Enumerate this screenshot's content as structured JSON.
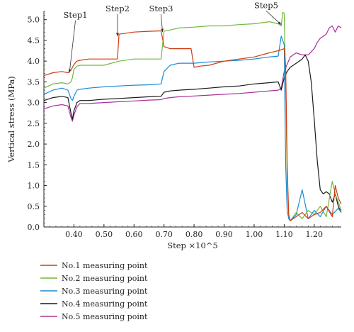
{
  "chart_data": {
    "type": "line",
    "xlabel": "Step ×10^5",
    "ylabel": "Vertical stress (MPa)",
    "xlim": [
      0.3,
      1.29
    ],
    "ylim": [
      0.0,
      5.2
    ],
    "x_ticks": [
      "0.40",
      "0.50",
      "0.60",
      "0.70",
      "0.80",
      "0.90",
      "1.00",
      "1.10",
      "1.20"
    ],
    "y_ticks": [
      "0.0",
      "0.5",
      "1.0",
      "1.5",
      "2.0",
      "2.5",
      "3.0",
      "3.5",
      "4.0",
      "4.5",
      "5.0"
    ],
    "grid": false,
    "legend_position": "bottom-left",
    "annotations": [
      {
        "text": "Step1",
        "x": 0.38,
        "y": 3.7
      },
      {
        "text": "Step2",
        "x": 0.55,
        "y": 4.65
      },
      {
        "text": "Step3",
        "x": 0.69,
        "y": 4.72
      },
      {
        "text": "Step5",
        "x": 1.085,
        "y": 4.9
      }
    ],
    "series": [
      {
        "name": "No.1 measuring point",
        "color": "#d03a10",
        "x": [
          0.3,
          0.33,
          0.36,
          0.38,
          0.39,
          0.395,
          0.4,
          0.41,
          0.42,
          0.45,
          0.5,
          0.545,
          0.55,
          0.6,
          0.65,
          0.69,
          0.7,
          0.72,
          0.75,
          0.79,
          0.8,
          0.82,
          0.85,
          0.9,
          0.95,
          1.0,
          1.05,
          1.08,
          1.1,
          1.105,
          1.11,
          1.115,
          1.12,
          1.14,
          1.16,
          1.18,
          1.2,
          1.22,
          1.24,
          1.26,
          1.27,
          1.28,
          1.29
        ],
        "y": [
          3.65,
          3.72,
          3.75,
          3.72,
          3.78,
          3.85,
          3.92,
          4.0,
          4.02,
          4.05,
          4.05,
          4.05,
          4.65,
          4.7,
          4.72,
          4.73,
          4.35,
          4.3,
          4.3,
          4.3,
          3.85,
          3.88,
          3.9,
          4.0,
          4.05,
          4.1,
          4.2,
          4.25,
          4.3,
          3.9,
          1.5,
          0.3,
          0.15,
          0.25,
          0.35,
          0.2,
          0.3,
          0.35,
          0.5,
          0.25,
          1.0,
          0.7,
          0.55
        ]
      },
      {
        "name": "No.2 measuring point",
        "color": "#6fb83a",
        "x": [
          0.3,
          0.33,
          0.36,
          0.38,
          0.39,
          0.395,
          0.4,
          0.41,
          0.42,
          0.45,
          0.5,
          0.55,
          0.6,
          0.65,
          0.69,
          0.7,
          0.72,
          0.75,
          0.8,
          0.85,
          0.9,
          0.95,
          1.0,
          1.05,
          1.08,
          1.09,
          1.095,
          1.1,
          1.105,
          1.11,
          1.115,
          1.12,
          1.14,
          1.16,
          1.18,
          1.2,
          1.22,
          1.24,
          1.26,
          1.27,
          1.28,
          1.29
        ],
        "y": [
          3.35,
          3.45,
          3.48,
          3.45,
          3.5,
          3.6,
          3.8,
          3.88,
          3.9,
          3.9,
          3.9,
          4.0,
          4.05,
          4.05,
          4.05,
          4.72,
          4.75,
          4.8,
          4.82,
          4.85,
          4.85,
          4.88,
          4.9,
          4.95,
          4.9,
          4.85,
          5.18,
          5.15,
          3.5,
          1.2,
          0.3,
          0.15,
          0.35,
          0.2,
          0.4,
          0.3,
          0.5,
          0.25,
          1.1,
          0.8,
          0.6,
          0.4
        ]
      },
      {
        "name": "No.3 measuring point",
        "color": "#1a8ad4",
        "x": [
          0.3,
          0.33,
          0.36,
          0.38,
          0.39,
          0.395,
          0.4,
          0.41,
          0.42,
          0.45,
          0.5,
          0.55,
          0.6,
          0.65,
          0.69,
          0.7,
          0.72,
          0.75,
          0.8,
          0.85,
          0.9,
          0.95,
          1.0,
          1.05,
          1.08,
          1.09,
          1.1,
          1.105,
          1.11,
          1.115,
          1.12,
          1.14,
          1.16,
          1.18,
          1.2,
          1.22,
          1.24,
          1.26,
          1.28,
          1.29
        ],
        "y": [
          3.2,
          3.3,
          3.35,
          3.3,
          3.1,
          3.05,
          3.15,
          3.3,
          3.32,
          3.35,
          3.38,
          3.4,
          3.42,
          3.43,
          3.45,
          3.75,
          3.9,
          3.95,
          3.95,
          3.98,
          4.0,
          4.02,
          4.05,
          4.1,
          4.12,
          4.6,
          4.4,
          1.5,
          0.4,
          0.2,
          0.15,
          0.3,
          0.9,
          0.2,
          0.4,
          0.25,
          0.5,
          0.3,
          0.45,
          0.35
        ]
      },
      {
        "name": "No.4 measuring point",
        "color": "#1a1a1a",
        "x": [
          0.3,
          0.33,
          0.36,
          0.38,
          0.39,
          0.395,
          0.4,
          0.41,
          0.42,
          0.45,
          0.5,
          0.55,
          0.6,
          0.65,
          0.69,
          0.7,
          0.72,
          0.75,
          0.8,
          0.85,
          0.9,
          0.95,
          1.0,
          1.05,
          1.08,
          1.09,
          1.1,
          1.11,
          1.12,
          1.14,
          1.16,
          1.17,
          1.18,
          1.19,
          1.2,
          1.21,
          1.22,
          1.23,
          1.24,
          1.25,
          1.26,
          1.27,
          1.28,
          1.29
        ],
        "y": [
          3.05,
          3.12,
          3.15,
          3.12,
          2.75,
          2.6,
          2.8,
          3.0,
          3.05,
          3.05,
          3.08,
          3.1,
          3.12,
          3.14,
          3.15,
          3.25,
          3.28,
          3.3,
          3.32,
          3.35,
          3.38,
          3.4,
          3.45,
          3.48,
          3.5,
          3.3,
          3.6,
          3.75,
          3.85,
          3.95,
          4.05,
          4.15,
          4.0,
          3.5,
          2.6,
          1.6,
          0.9,
          0.8,
          0.85,
          0.8,
          0.6,
          0.8,
          0.5,
          0.35
        ]
      },
      {
        "name": "No.5 measuring point",
        "color": "#a8309a",
        "x": [
          0.3,
          0.33,
          0.36,
          0.38,
          0.39,
          0.395,
          0.4,
          0.41,
          0.42,
          0.45,
          0.5,
          0.55,
          0.6,
          0.65,
          0.69,
          0.7,
          0.72,
          0.75,
          0.8,
          0.85,
          0.9,
          0.95,
          1.0,
          1.05,
          1.08,
          1.09,
          1.1,
          1.12,
          1.14,
          1.16,
          1.18,
          1.2,
          1.21,
          1.22,
          1.23,
          1.24,
          1.25,
          1.26,
          1.27,
          1.28,
          1.29
        ],
        "y": [
          2.85,
          2.92,
          2.95,
          2.92,
          2.65,
          2.55,
          2.7,
          2.9,
          2.98,
          2.98,
          3.0,
          3.02,
          3.04,
          3.06,
          3.07,
          3.1,
          3.12,
          3.14,
          3.16,
          3.18,
          3.2,
          3.22,
          3.25,
          3.28,
          3.3,
          3.35,
          3.75,
          4.1,
          4.2,
          4.15,
          4.15,
          4.3,
          4.45,
          4.55,
          4.6,
          4.65,
          4.8,
          4.85,
          4.7,
          4.85,
          4.8
        ]
      }
    ]
  }
}
